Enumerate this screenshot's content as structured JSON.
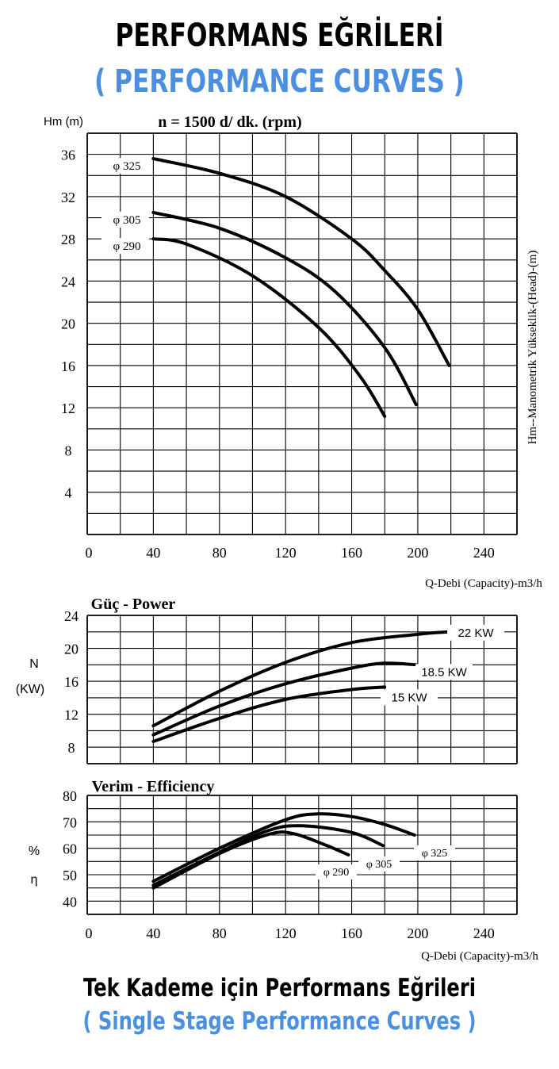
{
  "titles": {
    "main_tr": "PERFORMANS EĞRİLERİ",
    "main_en": "( PERFORMANCE CURVES )",
    "footer_tr": "Tek Kademe için Performans Eğrileri",
    "footer_en": "( Single Stage Performance Curves )"
  },
  "colors": {
    "blue_text": "#4a8fe0",
    "grid": "#000000",
    "curve": "#000000"
  },
  "chart_data": [
    {
      "type": "line",
      "title": "n = 1500 d/ dk.  (rpm)",
      "ylabel": "Hm (m)",
      "ylabel_right": "Hm--Manometrik Yükseklik-(Head)-(m)",
      "xlabel": "Q-Debi (Capacity)-m3/h",
      "xlim": [
        0,
        260
      ],
      "ylim": [
        0,
        38
      ],
      "xticks": [
        "0",
        "40",
        "80",
        "120",
        "160",
        "200",
        "240"
      ],
      "yticks": [
        "4",
        "8",
        "12",
        "16",
        "20",
        "24",
        "28",
        "32",
        "36"
      ],
      "grid": true,
      "series": [
        {
          "name": "φ 325",
          "x": [
            40,
            80,
            120,
            160,
            180,
            200,
            219
          ],
          "y": [
            35.6,
            34.2,
            32.0,
            28.0,
            25.0,
            21.3,
            16.0
          ]
        },
        {
          "name": "φ 305",
          "x": [
            40,
            80,
            120,
            150,
            180,
            199
          ],
          "y": [
            30.5,
            29.0,
            26.2,
            23.0,
            17.7,
            12.3
          ]
        },
        {
          "name": "φ 290",
          "x": [
            40,
            60,
            100,
            140,
            165,
            180
          ],
          "y": [
            28.0,
            27.5,
            24.5,
            19.6,
            15.0,
            11.2
          ]
        }
      ]
    },
    {
      "type": "line",
      "title": "Güç - Power",
      "ylabel": "N (KW)",
      "xlim": [
        0,
        260
      ],
      "ylim": [
        6,
        24
      ],
      "yticks": [
        "8",
        "12",
        "16",
        "20",
        "24"
      ],
      "grid": true,
      "series": [
        {
          "name": "22 KW",
          "x": [
            40,
            80,
            120,
            160,
            200,
            219
          ],
          "y": [
            10.6,
            14.8,
            18.3,
            20.7,
            21.7,
            22.0
          ]
        },
        {
          "name": "18.5 KW",
          "x": [
            40,
            80,
            120,
            160,
            180,
            199
          ],
          "y": [
            9.5,
            13.0,
            15.7,
            17.6,
            18.2,
            18.0
          ]
        },
        {
          "name": "15 KW",
          "x": [
            40,
            80,
            120,
            160,
            180
          ],
          "y": [
            8.7,
            11.5,
            13.8,
            15.0,
            15.3
          ]
        }
      ]
    },
    {
      "type": "line",
      "title": "Verim - Efficiency",
      "ylabel": "% η",
      "xlabel": "Q-Debi (Capacity)-m3/h",
      "xlim": [
        0,
        260
      ],
      "ylim": [
        35,
        80
      ],
      "xticks": [
        "0",
        "40",
        "80",
        "120",
        "160",
        "200",
        "240"
      ],
      "yticks": [
        "40",
        "50",
        "60",
        "70",
        "80"
      ],
      "grid": true,
      "series": [
        {
          "name": "φ 325",
          "x": [
            40,
            80,
            120,
            140,
            160,
            180,
            198
          ],
          "y": [
            47.5,
            60.0,
            70.8,
            73.0,
            72.0,
            69.0,
            65.0
          ]
        },
        {
          "name": "φ 305",
          "x": [
            40,
            80,
            110,
            130,
            160,
            179
          ],
          "y": [
            46.0,
            58.5,
            66.8,
            68.5,
            66.0,
            61.0
          ]
        },
        {
          "name": "φ 290",
          "x": [
            40,
            80,
            110,
            125,
            145,
            158
          ],
          "y": [
            45.0,
            58.0,
            65.3,
            65.5,
            61.0,
            57.5
          ]
        }
      ]
    }
  ]
}
